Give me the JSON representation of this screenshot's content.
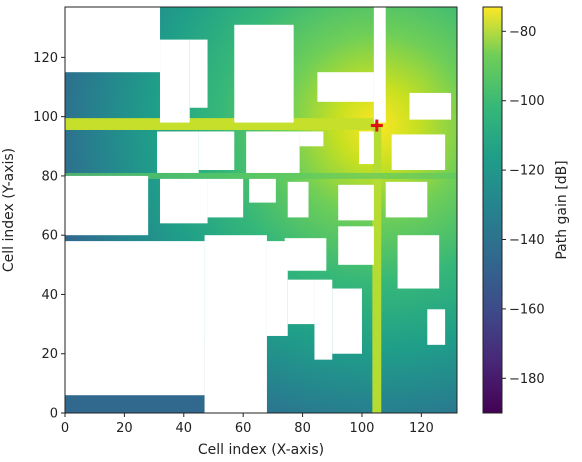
{
  "chart_data": {
    "type": "heatmap",
    "title": "",
    "xlabel": "Cell index (X-axis)",
    "ylabel": "Cell index (Y-axis)",
    "xlim": [
      0,
      132
    ],
    "ylim": [
      0,
      137
    ],
    "xticks": [
      0,
      20,
      40,
      60,
      80,
      100,
      120
    ],
    "yticks": [
      0,
      20,
      40,
      60,
      80,
      100,
      120
    ],
    "colorbar": {
      "label": "Path gain [dB]",
      "range": [
        -190,
        -73
      ],
      "ticks": [
        -80,
        -100,
        -120,
        -140,
        -160,
        -180
      ],
      "colormap": "viridis"
    },
    "transmitter": {
      "x": 105,
      "y": 97,
      "marker": "plus",
      "color": "#dd1111"
    },
    "obstacle_color": "#ffffff",
    "buildings": [
      {
        "x": [
          32,
          42
        ],
        "y": [
          98,
          126
        ]
      },
      {
        "x": [
          42,
          48
        ],
        "y": [
          103,
          126
        ]
      },
      {
        "x": [
          57,
          77
        ],
        "y": [
          98,
          131
        ]
      },
      {
        "x": [
          85,
          104
        ],
        "y": [
          105,
          115
        ]
      },
      {
        "x": [
          104,
          108
        ],
        "y": [
          98,
          137
        ]
      },
      {
        "x": [
          116,
          130
        ],
        "y": [
          99,
          108
        ]
      },
      {
        "x": [
          31,
          45
        ],
        "y": [
          81,
          95
        ]
      },
      {
        "x": [
          45,
          57
        ],
        "y": [
          82,
          95
        ]
      },
      {
        "x": [
          61,
          79
        ],
        "y": [
          81,
          95
        ]
      },
      {
        "x": [
          79,
          87
        ],
        "y": [
          90,
          95
        ]
      },
      {
        "x": [
          99,
          104
        ],
        "y": [
          84,
          95
        ]
      },
      {
        "x": [
          110,
          128
        ],
        "y": [
          82,
          94
        ]
      },
      {
        "x": [
          0,
          28
        ],
        "y": [
          60,
          80
        ]
      },
      {
        "x": [
          32,
          48
        ],
        "y": [
          64,
          79
        ]
      },
      {
        "x": [
          48,
          60
        ],
        "y": [
          66,
          79
        ]
      },
      {
        "x": [
          62,
          71
        ],
        "y": [
          71,
          79
        ]
      },
      {
        "x": [
          75,
          82
        ],
        "y": [
          66,
          78
        ]
      },
      {
        "x": [
          92,
          104
        ],
        "y": [
          65,
          77
        ]
      },
      {
        "x": [
          108,
          122
        ],
        "y": [
          66,
          78
        ]
      },
      {
        "x": [
          0,
          47
        ],
        "y": [
          6,
          58
        ]
      },
      {
        "x": [
          47,
          68
        ],
        "y": [
          0,
          60
        ]
      },
      {
        "x": [
          68,
          75
        ],
        "y": [
          26,
          58
        ]
      },
      {
        "x": [
          74,
          88
        ],
        "y": [
          48,
          59
        ]
      },
      {
        "x": [
          92,
          104
        ],
        "y": [
          50,
          63
        ]
      },
      {
        "x": [
          75,
          84
        ],
        "y": [
          30,
          45
        ]
      },
      {
        "x": [
          84,
          90
        ],
        "y": [
          18,
          45
        ]
      },
      {
        "x": [
          90,
          100
        ],
        "y": [
          20,
          42
        ]
      },
      {
        "x": [
          112,
          126
        ],
        "y": [
          42,
          60
        ]
      },
      {
        "x": [
          122,
          128
        ],
        "y": [
          23,
          35
        ]
      },
      {
        "x": [
          0,
          32
        ],
        "y": [
          115,
          137
        ]
      }
    ]
  }
}
